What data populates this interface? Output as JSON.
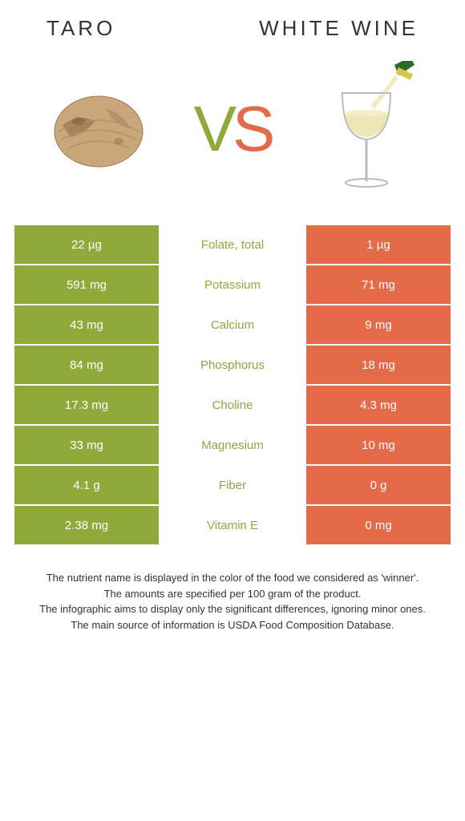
{
  "left_title": "Taro",
  "right_title": "White wine",
  "vs_v": "V",
  "vs_s": "S",
  "colors": {
    "left_bg": "#8fa93a",
    "right_bg": "#e56a4a",
    "name_left_winner": "#8fa93a",
    "name_right_winner": "#e56a4a"
  },
  "rows": [
    {
      "left": "22 µg",
      "name": "Folate, total",
      "right": "1 µg",
      "winner": "left"
    },
    {
      "left": "591 mg",
      "name": "Potassium",
      "right": "71 mg",
      "winner": "left"
    },
    {
      "left": "43 mg",
      "name": "Calcium",
      "right": "9 mg",
      "winner": "left"
    },
    {
      "left": "84 mg",
      "name": "Phosphorus",
      "right": "18 mg",
      "winner": "left"
    },
    {
      "left": "17.3 mg",
      "name": "Choline",
      "right": "4.3 mg",
      "winner": "left"
    },
    {
      "left": "33 mg",
      "name": "Magnesium",
      "right": "10 mg",
      "winner": "left"
    },
    {
      "left": "4.1 g",
      "name": "Fiber",
      "right": "0 g",
      "winner": "left"
    },
    {
      "left": "2.38 mg",
      "name": "Vitamin E",
      "right": "0 mg",
      "winner": "left"
    }
  ],
  "footer": [
    "The nutrient name is displayed in the color of the food we considered as 'winner'.",
    "The amounts are specified per 100 gram of the product.",
    "The infographic aims to display only the significant differences, ignoring minor ones.",
    "The main source of information is USDA Food Composition Database."
  ]
}
